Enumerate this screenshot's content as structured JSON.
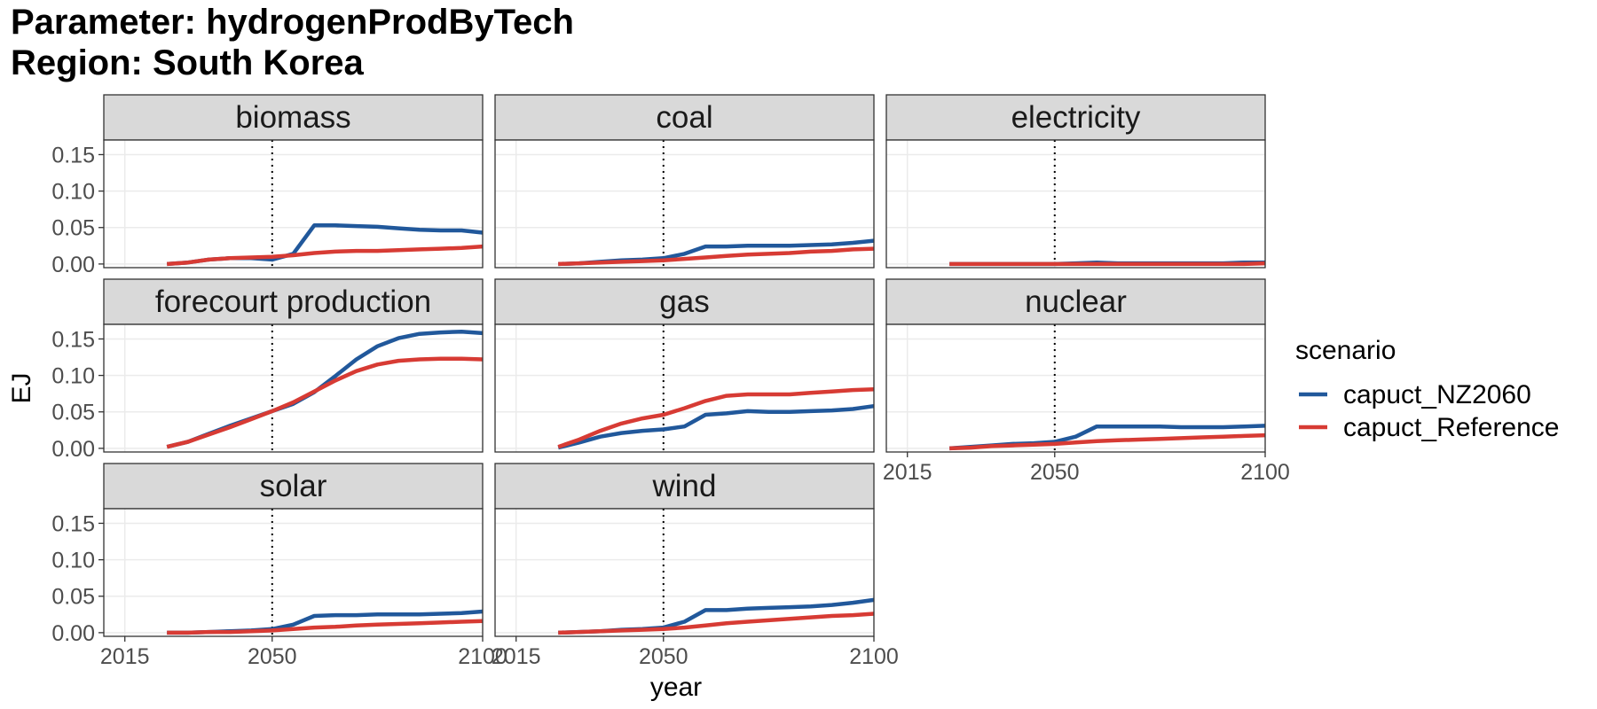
{
  "title_line1": "Parameter: hydrogenProdByTech",
  "title_line2": "Region: South Korea",
  "chart_data": {
    "type": "line",
    "xlabel": "year",
    "ylabel": "EJ",
    "x_ticks": [
      "2015",
      "2050",
      "2100"
    ],
    "y_ticks": [
      "0.00",
      "0.05",
      "0.10",
      "0.15"
    ],
    "xlim": [
      2010,
      2100
    ],
    "ylim": [
      -0.005,
      0.17
    ],
    "reference_line_x": 2050,
    "grid": true,
    "legend": {
      "title": "scenario",
      "position": "right",
      "entries": [
        {
          "name": "capuct_NZ2060",
          "color": "#21589b"
        },
        {
          "name": "capuct_Reference",
          "color": "#d73b34"
        }
      ]
    },
    "x": [
      2025,
      2030,
      2035,
      2040,
      2045,
      2050,
      2055,
      2060,
      2065,
      2070,
      2075,
      2080,
      2085,
      2090,
      2095,
      2100
    ],
    "panels": [
      {
        "name": "biomass",
        "series": [
          {
            "name": "capuct_NZ2060",
            "values": [
              0.0,
              0.002,
              0.006,
              0.008,
              0.008,
              0.006,
              0.014,
              0.053,
              0.053,
              0.052,
              0.051,
              0.049,
              0.047,
              0.046,
              0.046,
              0.043
            ]
          },
          {
            "name": "capuct_Reference",
            "values": [
              0.0,
              0.002,
              0.006,
              0.008,
              0.009,
              0.01,
              0.012,
              0.015,
              0.017,
              0.018,
              0.018,
              0.019,
              0.02,
              0.021,
              0.022,
              0.024
            ]
          }
        ]
      },
      {
        "name": "coal",
        "series": [
          {
            "name": "capuct_NZ2060",
            "values": [
              0.0,
              0.001,
              0.003,
              0.005,
              0.006,
              0.008,
              0.014,
              0.024,
              0.024,
              0.025,
              0.025,
              0.025,
              0.026,
              0.027,
              0.029,
              0.032
            ]
          },
          {
            "name": "capuct_Reference",
            "values": [
              0.0,
              0.001,
              0.002,
              0.003,
              0.004,
              0.005,
              0.007,
              0.009,
              0.011,
              0.013,
              0.014,
              0.015,
              0.017,
              0.018,
              0.02,
              0.021
            ]
          }
        ]
      },
      {
        "name": "electricity",
        "series": [
          {
            "name": "capuct_NZ2060",
            "values": [
              0.0,
              0.0,
              0.0,
              0.0,
              0.0,
              0.0,
              0.001,
              0.002,
              0.001,
              0.001,
              0.001,
              0.001,
              0.001,
              0.001,
              0.002,
              0.002
            ]
          },
          {
            "name": "capuct_Reference",
            "values": [
              0.0,
              0.0,
              0.0,
              0.0,
              0.0,
              0.0,
              0.0,
              0.0,
              0.0,
              0.0,
              0.0,
              0.0,
              0.0,
              0.0,
              0.0,
              0.001
            ]
          }
        ]
      },
      {
        "name": "forecourt production",
        "series": [
          {
            "name": "capuct_NZ2060",
            "values": [
              0.002,
              0.009,
              0.02,
              0.031,
              0.041,
              0.051,
              0.061,
              0.077,
              0.099,
              0.122,
              0.14,
              0.151,
              0.157,
              0.159,
              0.16,
              0.158
            ]
          },
          {
            "name": "capuct_Reference",
            "values": [
              0.002,
              0.009,
              0.019,
              0.029,
              0.04,
              0.051,
              0.063,
              0.078,
              0.093,
              0.106,
              0.115,
              0.12,
              0.122,
              0.123,
              0.123,
              0.122
            ]
          }
        ]
      },
      {
        "name": "gas",
        "series": [
          {
            "name": "capuct_NZ2060",
            "values": [
              0.001,
              0.008,
              0.016,
              0.021,
              0.024,
              0.026,
              0.03,
              0.046,
              0.048,
              0.051,
              0.05,
              0.05,
              0.051,
              0.052,
              0.054,
              0.058
            ]
          },
          {
            "name": "capuct_Reference",
            "values": [
              0.002,
              0.012,
              0.024,
              0.034,
              0.041,
              0.046,
              0.055,
              0.065,
              0.072,
              0.074,
              0.074,
              0.074,
              0.076,
              0.078,
              0.08,
              0.081
            ]
          }
        ]
      },
      {
        "name": "nuclear",
        "series": [
          {
            "name": "capuct_NZ2060",
            "values": [
              0.0,
              0.002,
              0.004,
              0.006,
              0.007,
              0.009,
              0.016,
              0.03,
              0.03,
              0.03,
              0.03,
              0.029,
              0.029,
              0.029,
              0.03,
              0.031
            ]
          },
          {
            "name": "capuct_Reference",
            "values": [
              0.0,
              0.001,
              0.003,
              0.004,
              0.005,
              0.006,
              0.008,
              0.01,
              0.011,
              0.012,
              0.013,
              0.014,
              0.015,
              0.016,
              0.017,
              0.018
            ]
          }
        ]
      },
      {
        "name": "solar",
        "series": [
          {
            "name": "capuct_NZ2060",
            "values": [
              0.0,
              0.0,
              0.001,
              0.002,
              0.003,
              0.005,
              0.011,
              0.023,
              0.024,
              0.024,
              0.025,
              0.025,
              0.025,
              0.026,
              0.027,
              0.029
            ]
          },
          {
            "name": "capuct_Reference",
            "values": [
              0.0,
              0.0,
              0.001,
              0.001,
              0.002,
              0.003,
              0.005,
              0.007,
              0.008,
              0.01,
              0.011,
              0.012,
              0.013,
              0.014,
              0.015,
              0.016
            ]
          }
        ]
      },
      {
        "name": "wind",
        "series": [
          {
            "name": "capuct_NZ2060",
            "values": [
              0.0,
              0.001,
              0.002,
              0.004,
              0.005,
              0.007,
              0.015,
              0.031,
              0.031,
              0.033,
              0.034,
              0.035,
              0.036,
              0.038,
              0.041,
              0.045
            ]
          },
          {
            "name": "capuct_Reference",
            "values": [
              0.0,
              0.001,
              0.002,
              0.003,
              0.004,
              0.005,
              0.007,
              0.01,
              0.013,
              0.015,
              0.017,
              0.019,
              0.021,
              0.023,
              0.024,
              0.026
            ]
          }
        ]
      }
    ]
  }
}
